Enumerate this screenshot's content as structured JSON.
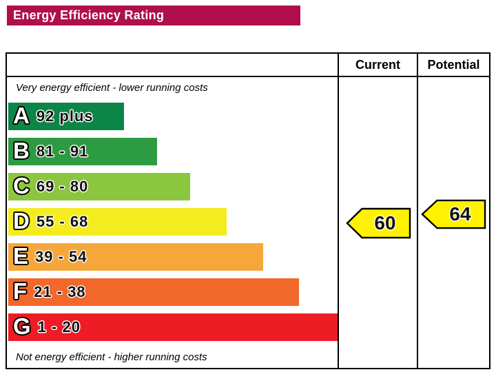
{
  "header": {
    "title": "Energy Efficiency Rating"
  },
  "columns": {
    "current": "Current",
    "potential": "Potential"
  },
  "chart_data": {
    "type": "bar",
    "title": "Energy Efficiency Rating",
    "top_note": "Very energy efficient - lower running costs",
    "bottom_note": "Not energy efficient - higher running costs",
    "header_color": "#b00f4b",
    "arrow_color": "#fff200",
    "bands": [
      {
        "letter": "A",
        "range": "92 plus",
        "color": "#0c8647",
        "width_pct": 35
      },
      {
        "letter": "B",
        "range": "81 - 91",
        "color": "#2d9b41",
        "width_pct": 45
      },
      {
        "letter": "C",
        "range": "69 - 80",
        "color": "#8cc63f",
        "width_pct": 55
      },
      {
        "letter": "D",
        "range": "55 - 68",
        "color": "#f4ec1f",
        "width_pct": 66
      },
      {
        "letter": "E",
        "range": "39 - 54",
        "color": "#f6a73c",
        "width_pct": 77
      },
      {
        "letter": "F",
        "range": "21 - 38",
        "color": "#f2672a",
        "width_pct": 88
      },
      {
        "letter": "G",
        "range": "1 - 20",
        "color": "#ee1c25",
        "width_pct": 99.5
      }
    ],
    "current": {
      "value": "60",
      "band": "D"
    },
    "potential": {
      "value": "64",
      "band": "D"
    }
  }
}
